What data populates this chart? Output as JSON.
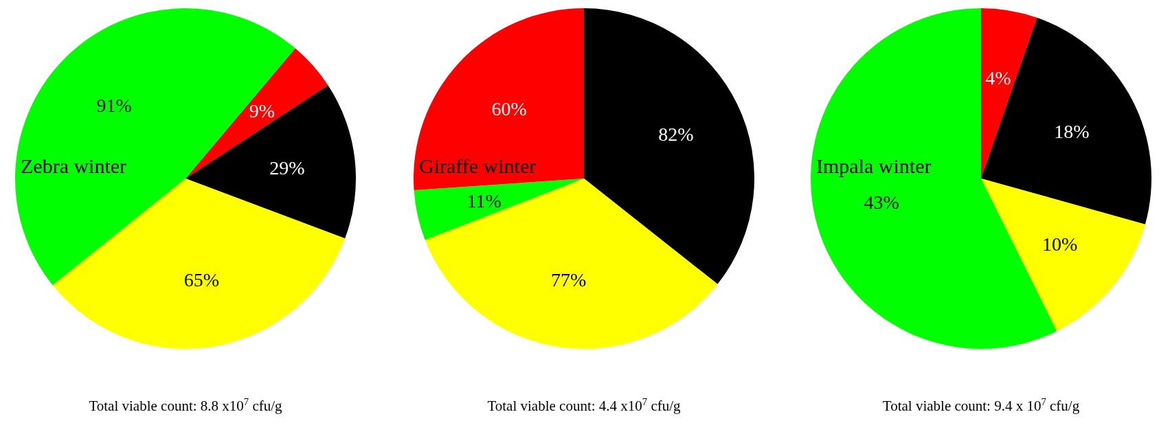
{
  "chart_data": [
    {
      "type": "pie",
      "title": "Zebra winter",
      "categories": [
        null,
        null,
        null,
        null
      ],
      "values": [
        9,
        29,
        65,
        91
      ],
      "value_labels": [
        "9%",
        "29%",
        "65%",
        "91%"
      ],
      "colors": [
        "#ff0000",
        "#000000",
        "#ffff00",
        "#00ff00"
      ],
      "annotations": [
        "Total viable count: 8.8 x10$^{7}$ cfu/g"
      ]
    },
    {
      "type": "pie",
      "title": "Giraffe winter",
      "categories": [
        null,
        null,
        null,
        null
      ],
      "values": [
        82,
        77,
        11,
        60
      ],
      "value_labels": [
        "82%",
        "77%",
        "11%",
        "60%"
      ],
      "colors": [
        "#000000",
        "#ffff00",
        "#00ff00",
        "#ff0000"
      ],
      "annotations": [
        "Total viable count: 4.4 x10$^{7}$ cfu/g"
      ]
    },
    {
      "type": "pie",
      "title": "Impala winter",
      "categories": [
        null,
        null,
        null,
        null
      ],
      "values": [
        4,
        18,
        10,
        43
      ],
      "value_labels": [
        "4%",
        "18%",
        "10%",
        "43%"
      ],
      "colors": [
        "#ff0000",
        "#000000",
        "#ffff00",
        "#00ff00"
      ],
      "annotations": [
        "Total viable count: 9.4 x 10$^{7}$ cfu/g"
      ]
    }
  ]
}
